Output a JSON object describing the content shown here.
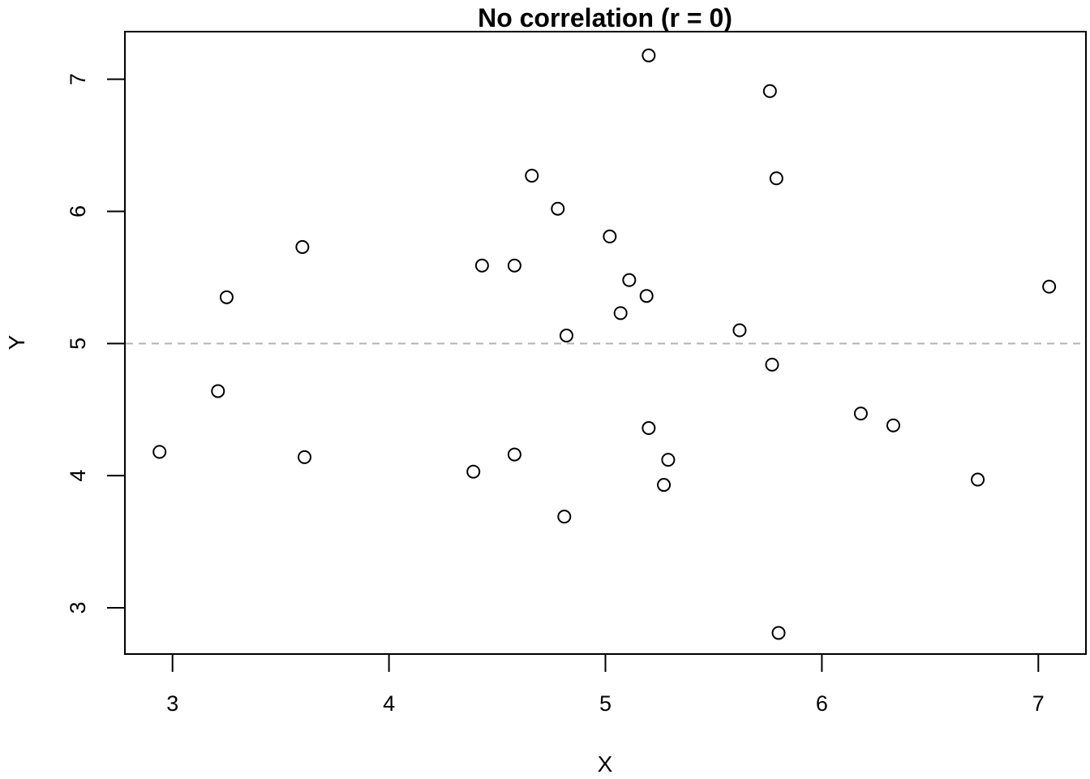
{
  "chart_data": {
    "type": "scatter",
    "title": "No correlation (r = 0)",
    "xlabel": "X",
    "ylabel": "Y",
    "xlim": [
      2.78,
      7.22
    ],
    "ylim": [
      2.65,
      7.36
    ],
    "x_ticks": [
      3,
      4,
      5,
      6,
      7
    ],
    "y_ticks": [
      3,
      4,
      5,
      6,
      7
    ],
    "x_tick_labels": [
      "3",
      "4",
      "5",
      "6",
      "7"
    ],
    "y_tick_labels": [
      "3",
      "4",
      "5",
      "6",
      "7"
    ],
    "grid": false,
    "legend": "none",
    "reference_line": {
      "y": 5,
      "style": "dashed",
      "color": "#b3b3b3"
    },
    "marker": {
      "shape": "open-circle",
      "color": "#000000"
    },
    "points": [
      {
        "x": 2.94,
        "y": 4.18
      },
      {
        "x": 3.21,
        "y": 4.64
      },
      {
        "x": 3.25,
        "y": 5.35
      },
      {
        "x": 3.6,
        "y": 5.73
      },
      {
        "x": 3.61,
        "y": 4.14
      },
      {
        "x": 4.39,
        "y": 4.03
      },
      {
        "x": 4.43,
        "y": 5.59
      },
      {
        "x": 4.58,
        "y": 5.59
      },
      {
        "x": 4.58,
        "y": 4.16
      },
      {
        "x": 4.66,
        "y": 6.27
      },
      {
        "x": 4.78,
        "y": 6.02
      },
      {
        "x": 4.81,
        "y": 3.69
      },
      {
        "x": 4.82,
        "y": 5.06
      },
      {
        "x": 5.02,
        "y": 5.81
      },
      {
        "x": 5.07,
        "y": 5.23
      },
      {
        "x": 5.11,
        "y": 5.48
      },
      {
        "x": 5.19,
        "y": 5.36
      },
      {
        "x": 5.2,
        "y": 7.18
      },
      {
        "x": 5.2,
        "y": 4.36
      },
      {
        "x": 5.27,
        "y": 3.93
      },
      {
        "x": 5.29,
        "y": 4.12
      },
      {
        "x": 5.62,
        "y": 5.1
      },
      {
        "x": 5.76,
        "y": 6.91
      },
      {
        "x": 5.77,
        "y": 4.84
      },
      {
        "x": 5.79,
        "y": 6.25
      },
      {
        "x": 5.8,
        "y": 2.81
      },
      {
        "x": 6.18,
        "y": 4.47
      },
      {
        "x": 6.33,
        "y": 4.38
      },
      {
        "x": 6.72,
        "y": 3.97
      },
      {
        "x": 7.05,
        "y": 5.43
      }
    ]
  }
}
